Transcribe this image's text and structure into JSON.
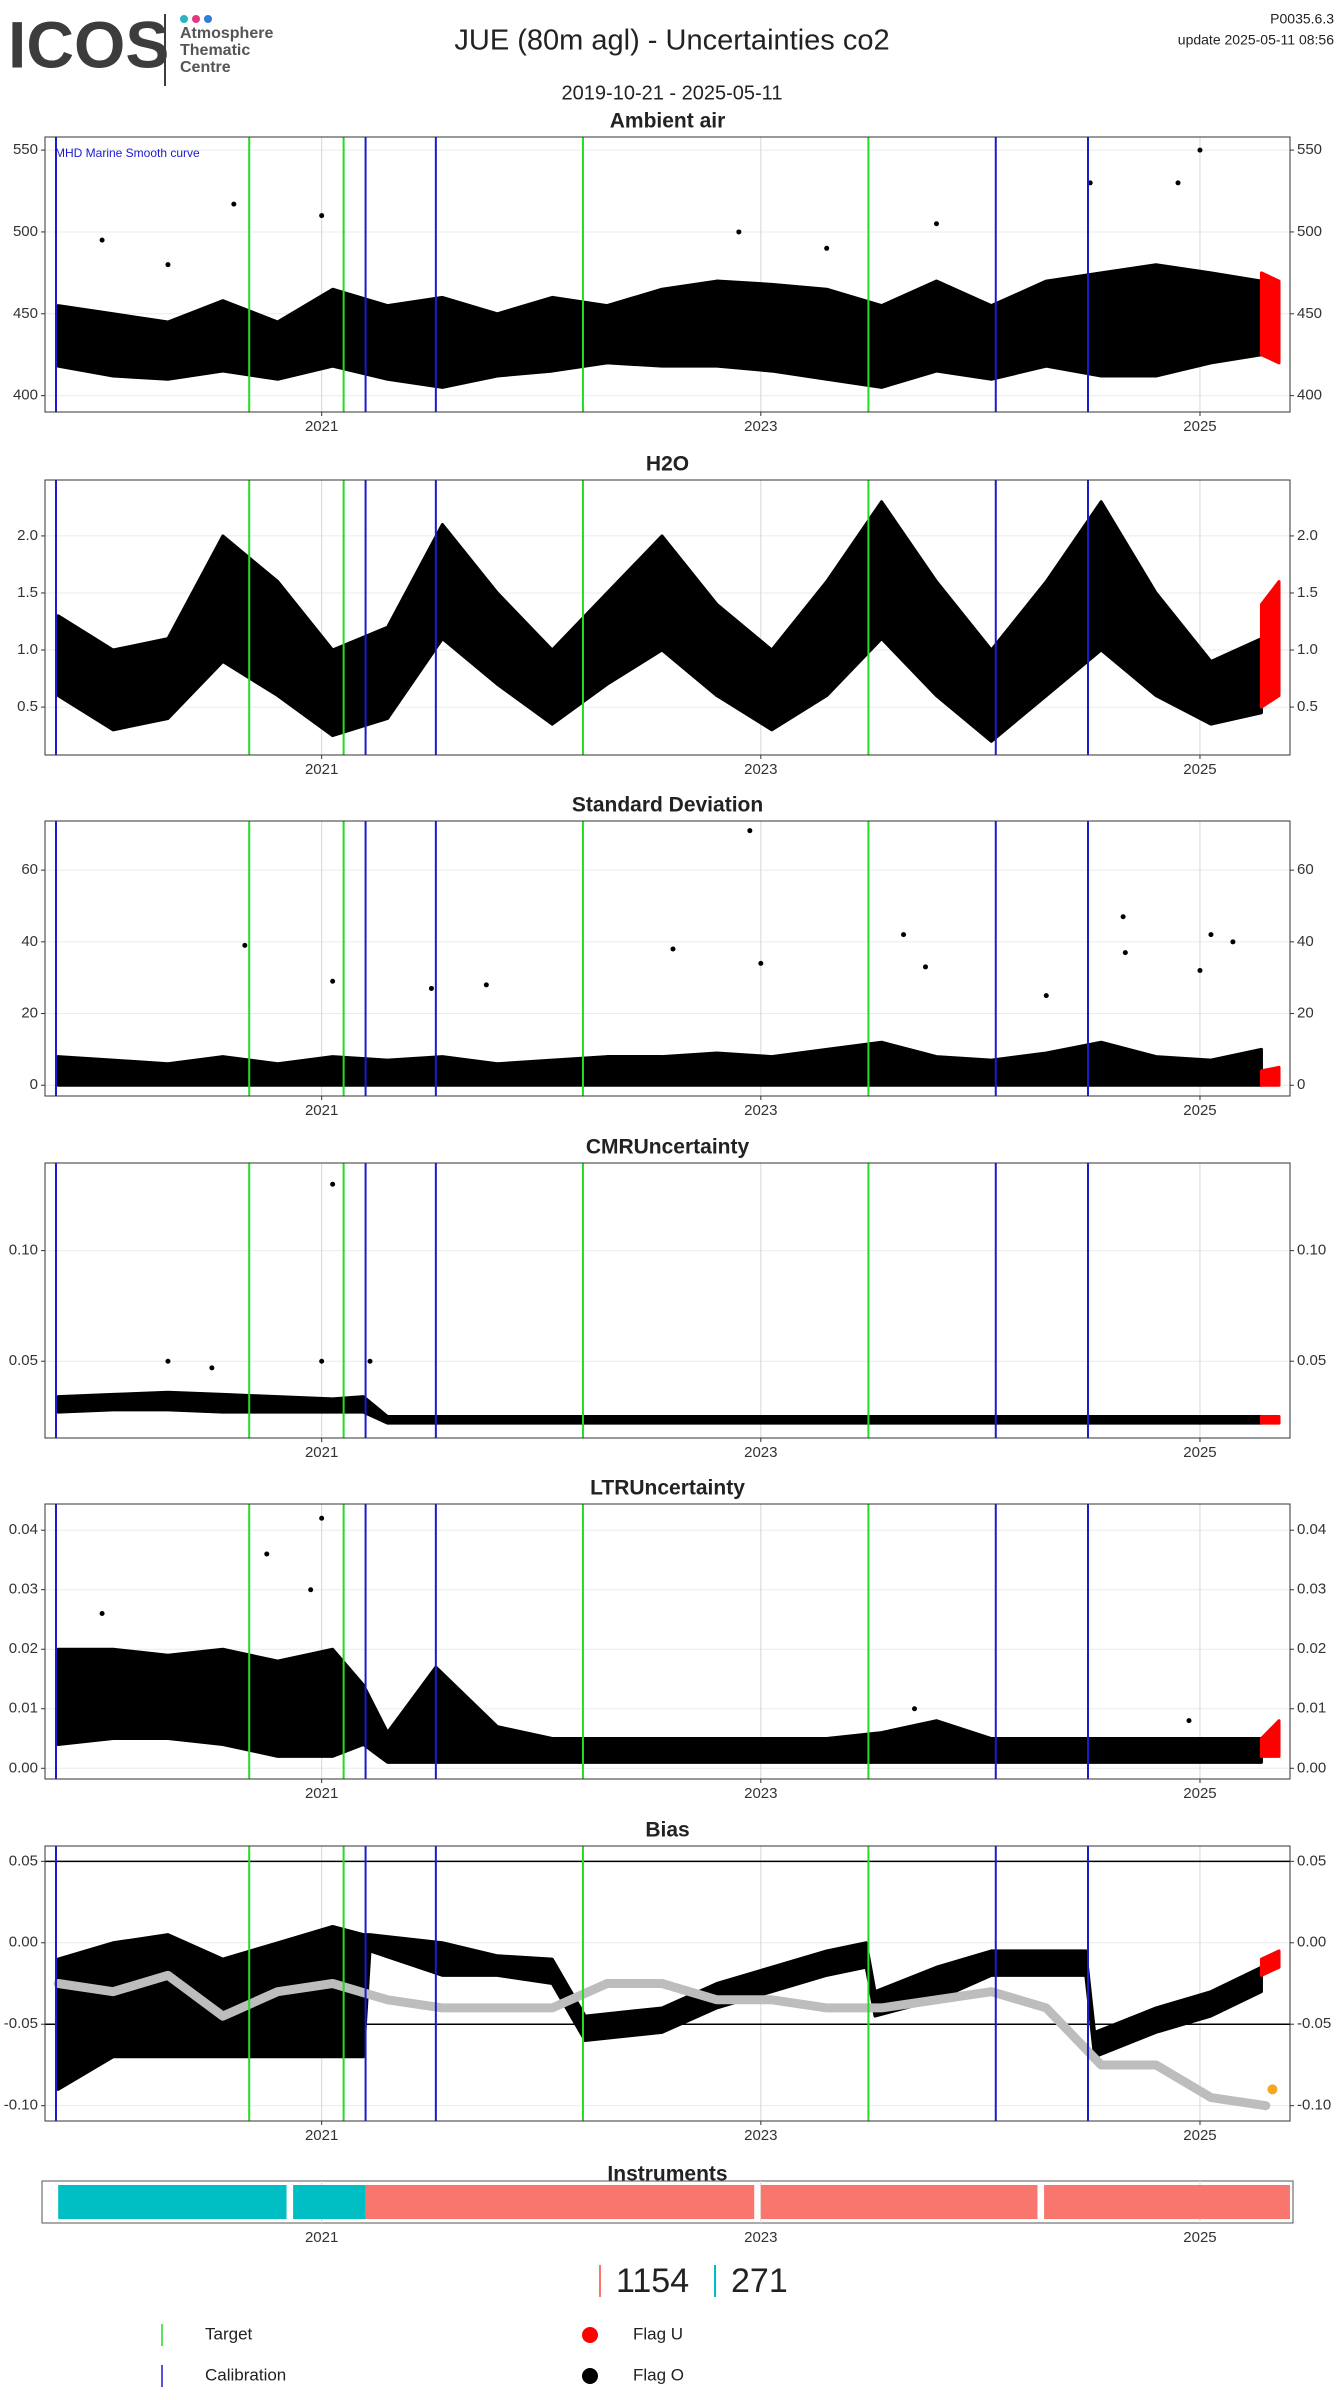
{
  "header": {
    "logo": "ICOS",
    "org": [
      "Atmosphere",
      "Thematic",
      "Centre"
    ],
    "title": "JUE  (80m agl) - Uncertainties co2",
    "version": "P0035.6.3",
    "update": "update  2025-05-11 08:56",
    "period": "2019-10-21 - 2025-05-11"
  },
  "target_dates": [
    2020.67,
    2021.1,
    2022.19,
    2023.49
  ],
  "calibration_dates": [
    2019.79,
    2021.2,
    2021.52,
    2024.07,
    2024.49
  ],
  "legend": [
    {
      "name": "Target",
      "color": "#22dd22",
      "shape": "line"
    },
    {
      "name": "Calibration",
      "color": "#1a1ad0",
      "shape": "line"
    },
    {
      "name": "Flag U",
      "color": "#ff0000",
      "shape": "point"
    },
    {
      "name": "Flag O",
      "color": "#000000",
      "shape": "point"
    }
  ],
  "chart_data": [
    {
      "type": "scatter",
      "title": "Ambient air",
      "annotation": "MHD Marine Smooth curve",
      "xlim": [
        2019.74,
        2025.41
      ],
      "xticks": [
        2021,
        2023,
        2025
      ],
      "ylim": [
        390,
        558
      ],
      "yticks": [
        400,
        450,
        500,
        550
      ],
      "grid": true,
      "band": {
        "x": [
          2019.8,
          2020.05,
          2020.3,
          2020.55,
          2020.8,
          2021.05,
          2021.3,
          2021.55,
          2021.8,
          2022.05,
          2022.3,
          2022.55,
          2022.8,
          2023.05,
          2023.3,
          2023.55,
          2023.8,
          2024.05,
          2024.3,
          2024.55,
          2024.8,
          2025.05,
          2025.28
        ],
        "low": [
          418,
          412,
          410,
          415,
          410,
          418,
          410,
          405,
          412,
          415,
          420,
          418,
          418,
          415,
          410,
          405,
          415,
          410,
          418,
          412,
          412,
          420,
          425
        ],
        "high": [
          455,
          450,
          445,
          458,
          445,
          465,
          455,
          460,
          450,
          460,
          455,
          465,
          470,
          468,
          465,
          455,
          470,
          455,
          470,
          475,
          480,
          475,
          470
        ]
      },
      "outliers": {
        "x": [
          2020.3,
          2020.6,
          2021.0,
          2022.9,
          2023.8,
          2024.5,
          2025.0,
          2024.9,
          2023.3,
          2020.0
        ],
        "values": [
          480,
          517,
          510,
          500,
          505,
          530,
          550,
          530,
          490,
          495
        ]
      },
      "flagged": {
        "x": [
          2025.28,
          2025.36
        ],
        "low": [
          425,
          420
        ],
        "high": [
          475,
          470
        ]
      }
    },
    {
      "type": "scatter",
      "title": "H2O",
      "xlim": [
        2019.74,
        2025.41
      ],
      "xticks": [
        2021,
        2023,
        2025
      ],
      "ylim": [
        0.08,
        2.49
      ],
      "yticks": [
        {
          "value": 0.5,
          "label": "0.5"
        },
        {
          "value": 1,
          "label": "1.0"
        },
        {
          "value": 1.5,
          "label": "1.5"
        },
        {
          "value": 2,
          "label": "2.0"
        }
      ],
      "grid": true,
      "band": {
        "x": [
          2019.8,
          2020.05,
          2020.3,
          2020.55,
          2020.8,
          2021.05,
          2021.3,
          2021.55,
          2021.8,
          2022.05,
          2022.3,
          2022.55,
          2022.8,
          2023.05,
          2023.3,
          2023.55,
          2023.8,
          2024.05,
          2024.3,
          2024.55,
          2024.8,
          2025.05,
          2025.28
        ],
        "low": [
          0.6,
          0.3,
          0.4,
          0.9,
          0.6,
          0.25,
          0.4,
          1.1,
          0.7,
          0.35,
          0.7,
          1.0,
          0.6,
          0.3,
          0.6,
          1.1,
          0.6,
          0.2,
          0.6,
          1.0,
          0.6,
          0.35,
          0.45
        ],
        "high": [
          1.3,
          1.0,
          1.1,
          2.0,
          1.6,
          1.0,
          1.2,
          2.1,
          1.5,
          1.0,
          1.5,
          2.0,
          1.4,
          1.0,
          1.6,
          2.3,
          1.6,
          1.0,
          1.6,
          2.3,
          1.5,
          0.9,
          1.1
        ]
      },
      "flagged": {
        "x": [
          2025.28,
          2025.36
        ],
        "low": [
          0.5,
          0.6
        ],
        "high": [
          1.4,
          1.6
        ]
      }
    },
    {
      "type": "scatter",
      "title": "Standard Deviation",
      "xlim": [
        2019.74,
        2025.41
      ],
      "xticks": [
        2021,
        2023,
        2025
      ],
      "ylim": [
        -3,
        73.7
      ],
      "yticks": [
        0,
        20,
        40,
        60
      ],
      "grid": true,
      "band": {
        "x": [
          2019.8,
          2020.05,
          2020.3,
          2020.55,
          2020.8,
          2021.05,
          2021.3,
          2021.55,
          2021.8,
          2022.05,
          2022.3,
          2022.55,
          2022.8,
          2023.05,
          2023.3,
          2023.55,
          2023.8,
          2024.05,
          2024.3,
          2024.55,
          2024.8,
          2025.05,
          2025.28
        ],
        "low": [
          0,
          0,
          0,
          0,
          0,
          0,
          0,
          0,
          0,
          0,
          0,
          0,
          0,
          0,
          0,
          0,
          0,
          0,
          0,
          0,
          0,
          0,
          0
        ],
        "high": [
          8,
          7,
          6,
          8,
          6,
          8,
          7,
          8,
          6,
          7,
          8,
          8,
          9,
          8,
          10,
          12,
          8,
          7,
          9,
          12,
          8,
          7,
          10
        ]
      },
      "outliers": {
        "x": [
          2020.65,
          2021.05,
          2021.5,
          2021.75,
          2022.6,
          2022.95,
          2023.0,
          2023.65,
          2023.75,
          2024.3,
          2024.65,
          2024.66,
          2025.0,
          2025.05,
          2025.15
        ],
        "values": [
          39,
          29,
          27,
          28,
          38,
          71,
          34,
          42,
          33,
          25,
          47,
          37,
          32,
          42,
          40
        ]
      },
      "flagged": {
        "x": [
          2025.28,
          2025.36
        ],
        "low": [
          0,
          0
        ],
        "high": [
          4,
          5
        ]
      }
    },
    {
      "type": "scatter",
      "title": "CMRUncertainty",
      "xlim": [
        2019.74,
        2025.41
      ],
      "xticks": [
        2021,
        2023,
        2025
      ],
      "ylim": [
        0.0153,
        0.1396
      ],
      "yticks": [
        0.05,
        {
          "value": 0.1,
          "label": "0.10"
        }
      ],
      "grid": true,
      "band": {
        "x": [
          2019.8,
          2020.05,
          2020.3,
          2020.55,
          2020.8,
          2021.05,
          2021.19,
          2021.3,
          2021.55,
          2021.8,
          2022.05,
          2022.3,
          2022.55,
          2022.8,
          2023.05,
          2023.3,
          2023.55,
          2023.8,
          2024.05,
          2024.3,
          2024.55,
          2024.8,
          2025.05,
          2025.28
        ],
        "low": [
          0.027,
          0.028,
          0.028,
          0.027,
          0.027,
          0.027,
          0.027,
          0.022,
          0.022,
          0.022,
          0.022,
          0.022,
          0.022,
          0.022,
          0.022,
          0.022,
          0.022,
          0.022,
          0.022,
          0.022,
          0.022,
          0.022,
          0.022,
          0.022
        ],
        "high": [
          0.034,
          0.035,
          0.036,
          0.035,
          0.034,
          0.033,
          0.034,
          0.025,
          0.025,
          0.025,
          0.025,
          0.025,
          0.025,
          0.025,
          0.025,
          0.025,
          0.025,
          0.025,
          0.025,
          0.025,
          0.025,
          0.025,
          0.025,
          0.025
        ]
      },
      "outliers": {
        "x": [
          2021.05,
          2020.3,
          2021.0,
          2021.22,
          2020.5
        ],
        "values": [
          0.13,
          0.05,
          0.05,
          0.05,
          0.047
        ]
      },
      "flagged": {
        "x": [
          2025.28,
          2025.36
        ],
        "low": [
          0.022,
          0.022
        ],
        "high": [
          0.025,
          0.025
        ]
      }
    },
    {
      "type": "scatter",
      "title": "LTRUncertainty",
      "xlim": [
        2019.74,
        2025.41
      ],
      "xticks": [
        2021,
        2023,
        2025
      ],
      "ylim": [
        -0.0018,
        0.0444
      ],
      "yticks": [
        {
          "value": 0,
          "label": "0.00"
        },
        0.01,
        0.02,
        0.03,
        0.04
      ],
      "grid": true,
      "band": {
        "x": [
          2019.8,
          2020.05,
          2020.3,
          2020.55,
          2020.8,
          2021.05,
          2021.19,
          2021.3,
          2021.52,
          2021.8,
          2022.05,
          2022.3,
          2022.55,
          2022.8,
          2023.05,
          2023.3,
          2023.55,
          2023.8,
          2024.05,
          2024.3,
          2024.55,
          2024.8,
          2025.05,
          2025.28
        ],
        "low": [
          0.004,
          0.005,
          0.005,
          0.004,
          0.002,
          0.002,
          0.004,
          0.001,
          0.001,
          0.001,
          0.001,
          0.001,
          0.001,
          0.001,
          0.001,
          0.001,
          0.001,
          0.001,
          0.001,
          0.001,
          0.001,
          0.001,
          0.001,
          0.001
        ],
        "high": [
          0.02,
          0.02,
          0.019,
          0.02,
          0.018,
          0.02,
          0.014,
          0.006,
          0.017,
          0.007,
          0.005,
          0.005,
          0.005,
          0.005,
          0.005,
          0.005,
          0.006,
          0.008,
          0.005,
          0.005,
          0.005,
          0.005,
          0.005,
          0.005
        ]
      },
      "outliers": {
        "x": [
          2020.0,
          2020.75,
          2021.0,
          2020.95,
          2023.7,
          2024.95
        ],
        "values": [
          0.026,
          0.036,
          0.042,
          0.03,
          0.01,
          0.008
        ]
      },
      "flagged": {
        "x": [
          2025.28,
          2025.36
        ],
        "low": [
          0.002,
          0.002
        ],
        "high": [
          0.005,
          0.008
        ]
      }
    },
    {
      "type": "scatter",
      "title": "Bias",
      "xlim": [
        2019.74,
        2025.41
      ],
      "xticks": [
        2021,
        2023,
        2025
      ],
      "ylim": [
        -0.1094,
        0.0594
      ],
      "yticks": [
        {
          "value": -0.1,
          "label": "-0.10"
        },
        -0.05,
        {
          "value": 0,
          "label": "0.00"
        },
        0.05
      ],
      "grid": true,
      "hlines": [
        0.05,
        -0.05
      ],
      "band": {
        "x": [
          2019.8,
          2020.05,
          2020.3,
          2020.55,
          2020.8,
          2021.05,
          2021.19,
          2021.22,
          2021.55,
          2021.8,
          2022.05,
          2022.2,
          2022.55,
          2022.8,
          2023.05,
          2023.3,
          2023.48,
          2023.52,
          2023.8,
          2024.05,
          2024.48,
          2024.52,
          2024.8,
          2025.05,
          2025.28
        ],
        "low": [
          -0.09,
          -0.07,
          -0.07,
          -0.07,
          -0.07,
          -0.07,
          -0.07,
          -0.005,
          -0.02,
          -0.02,
          -0.025,
          -0.06,
          -0.055,
          -0.04,
          -0.03,
          -0.02,
          -0.015,
          -0.045,
          -0.035,
          -0.02,
          -0.02,
          -0.07,
          -0.055,
          -0.045,
          -0.03
        ],
        "high": [
          -0.01,
          0.0,
          0.005,
          -0.01,
          0.0,
          0.01,
          0.005,
          0.005,
          0.0,
          -0.008,
          -0.01,
          -0.045,
          -0.04,
          -0.025,
          -0.015,
          -0.005,
          0.0,
          -0.03,
          -0.015,
          -0.005,
          -0.005,
          -0.055,
          -0.04,
          -0.03,
          -0.015
        ]
      },
      "flagged": {
        "x": [
          2025.28,
          2025.36
        ],
        "low": [
          -0.02,
          -0.015
        ],
        "high": [
          -0.01,
          -0.005
        ]
      },
      "smooth": {
        "color": "#bdbdbd",
        "x": [
          2019.8,
          2020.05,
          2020.3,
          2020.55,
          2020.8,
          2021.05,
          2021.3,
          2021.55,
          2021.8,
          2022.05,
          2022.3,
          2022.55,
          2022.8,
          2023.05,
          2023.3,
          2023.55,
          2023.8,
          2024.05,
          2024.3,
          2024.55,
          2024.8,
          2025.05,
          2025.3
        ],
        "values": [
          -0.025,
          -0.03,
          -0.02,
          -0.045,
          -0.03,
          -0.025,
          -0.035,
          -0.04,
          -0.04,
          -0.04,
          -0.025,
          -0.025,
          -0.035,
          -0.035,
          -0.04,
          -0.04,
          -0.035,
          -0.03,
          -0.04,
          -0.075,
          -0.075,
          -0.095,
          -0.1
        ]
      },
      "smooth_end": {
        "color": "#f5a623",
        "x": [
          2025.33
        ],
        "values": [
          -0.09
        ]
      }
    },
    {
      "type": "timeline",
      "title": "Instruments",
      "xlim": [
        2019.74,
        2025.41
      ],
      "xticks": [
        2021,
        2023,
        2025
      ],
      "segments": [
        {
          "start": 2019.8,
          "end": 2020.84,
          "color": "#00bfc4"
        },
        {
          "start": 2020.87,
          "end": 2021.2,
          "color": "#00bfc4"
        },
        {
          "start": 2021.2,
          "end": 2022.97,
          "color": "#f8766d"
        },
        {
          "start": 2023.0,
          "end": 2024.26,
          "color": "#f8766d"
        },
        {
          "start": 2024.29,
          "end": 2025.41,
          "color": "#f8766d"
        }
      ],
      "counts": [
        {
          "value": 1154,
          "color": "#f8766d"
        },
        {
          "value": 271,
          "color": "#00bfc4"
        }
      ]
    }
  ]
}
